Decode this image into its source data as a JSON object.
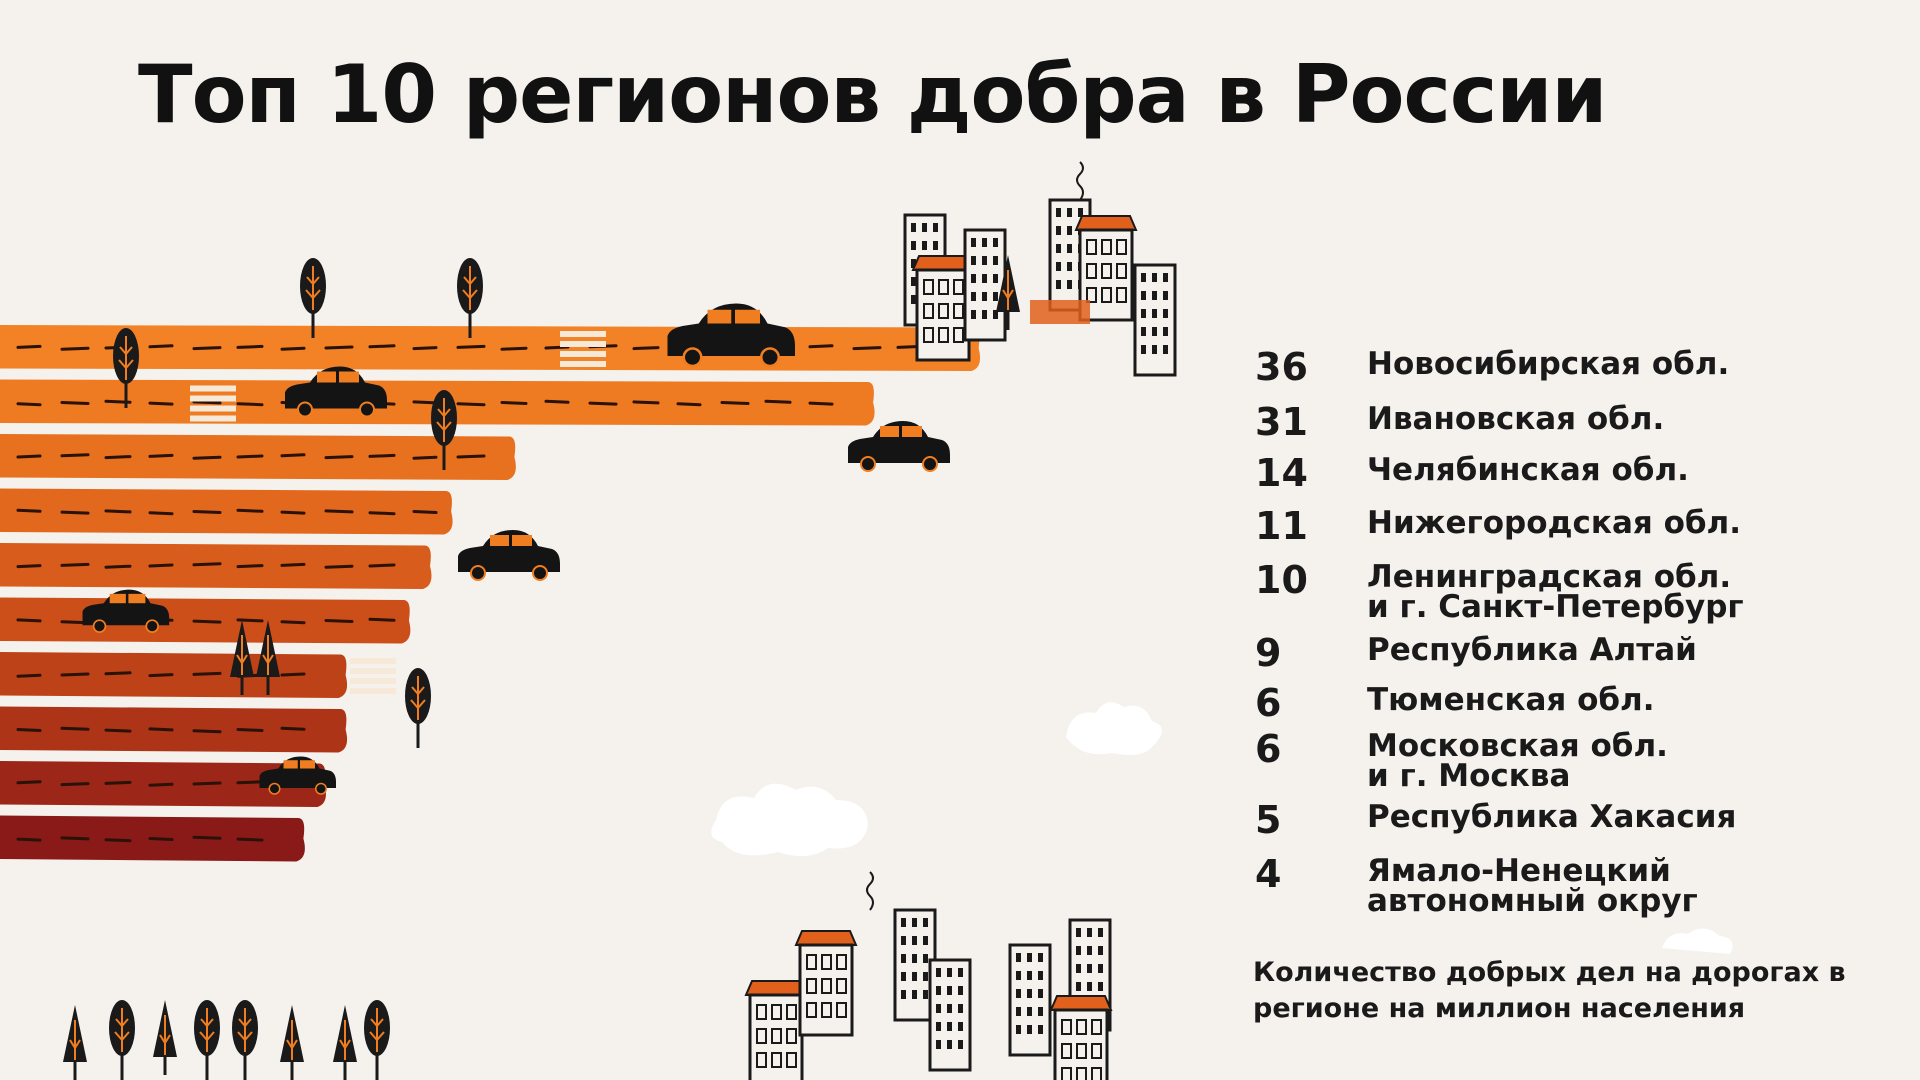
{
  "title": "Топ 10 регионов добра в России",
  "caption": "Количество добрых дел на дорогах в регионе на миллион населения",
  "colors": [
    "#f28225",
    "#ee7a22",
    "#e8711f",
    "#e2681d",
    "#d85c1b",
    "#cc4f19",
    "#bd4217",
    "#ad3417",
    "#9c2617",
    "#8a1a17"
  ],
  "chart_data": {
    "type": "bar",
    "orientation": "horizontal",
    "title": "Топ 10 регионов добра в России",
    "categories": [
      "Новосибирская обл.",
      "Ивановская обл.",
      "Челябинская обл.",
      "Нижегородская обл.",
      "Ленинградская обл.\nи г. Санкт-Петербург",
      "Республика Алтай",
      "Тюменская обл.",
      "Московская обл.\nи г. Москва",
      "Республика Хакасия",
      "Ямало-Ненецкий\nавтономный округ"
    ],
    "values": [
      36,
      31,
      14,
      11,
      10,
      9,
      6,
      6,
      5,
      4
    ],
    "value_labels": [
      "36",
      "31",
      "14",
      "11",
      "10",
      "9",
      "6",
      "6",
      "5",
      "4"
    ],
    "ylabel": "Количество добрых дел на дорогах в регионе на миллион населения"
  }
}
